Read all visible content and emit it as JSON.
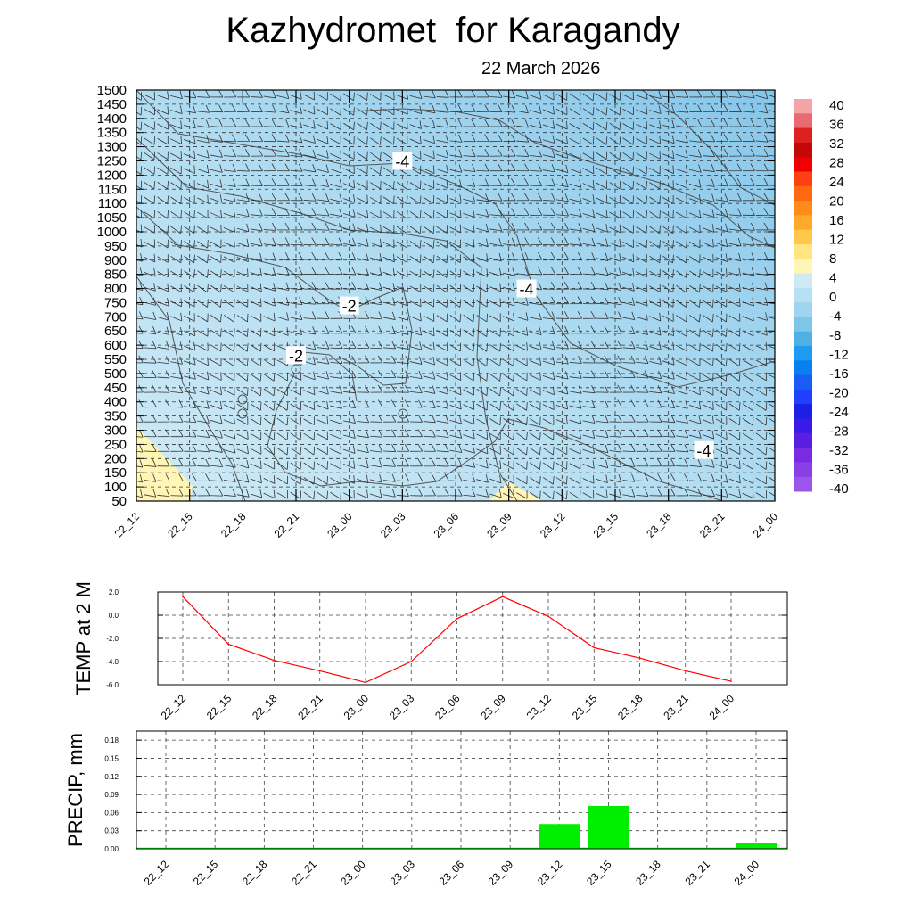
{
  "title": "Kazhydromet  for Karagandy",
  "subtitle": "22 March 2026",
  "colors": {
    "background_field": "#a9d9ef",
    "warm_patch": "#fff5b5",
    "contour": "#555555",
    "temp_line": "#ff0000",
    "precip_bar": "#00ee00",
    "grid": "#444444"
  },
  "chart_data": [
    {
      "type": "heatmap",
      "name": "vertical-cross-section",
      "x_tick_labels": [
        "22_12",
        "22_15",
        "22_18",
        "22_21",
        "23_00",
        "23_03",
        "23_06",
        "23_09",
        "23_12",
        "23_15",
        "23_18",
        "23_21",
        "24_00"
      ],
      "y_tick_labels": [
        "50",
        "100",
        "150",
        "200",
        "250",
        "300",
        "350",
        "400",
        "450",
        "500",
        "550",
        "600",
        "650",
        "700",
        "750",
        "800",
        "850",
        "900",
        "950",
        "1000",
        "1050",
        "1100",
        "1150",
        "1200",
        "1250",
        "1300",
        "1350",
        "1400",
        "1450",
        "1500"
      ],
      "ylim": [
        50,
        1500
      ],
      "contour_labels": [
        {
          "text": "-4",
          "x": 23.03,
          "y": 1250
        },
        {
          "text": "-2",
          "x": 23.0,
          "y": 740
        },
        {
          "text": "-4",
          "x": 23.1,
          "y": 800
        },
        {
          "text": "-2",
          "x": 22.21,
          "y": 565
        },
        {
          "text": "-4",
          "x": 23.2,
          "y": 230
        }
      ],
      "colorbar": {
        "labels": [
          "40",
          "36",
          "32",
          "28",
          "24",
          "20",
          "16",
          "12",
          "8",
          "4",
          "0",
          "-4",
          "-8",
          "-12",
          "-16",
          "-20",
          "-24",
          "-28",
          "-32",
          "-36",
          "-40"
        ],
        "colors": [
          "#f4a3a8",
          "#ea6a72",
          "#dd2020",
          "#c40808",
          "#f00000",
          "#ff4010",
          "#ff6a10",
          "#ff8c1a",
          "#ffa82a",
          "#ffc84a",
          "#ffe680",
          "#fff5b5",
          "#cfeaf7",
          "#b8e0f3",
          "#9fd5ee",
          "#7cc6ea",
          "#4fb0e5",
          "#1e9cf0",
          "#0a7ff0",
          "#1a5df5",
          "#2040ff",
          "#1a20e6",
          "#3a1ae6",
          "#5a1ee0",
          "#7a2ae0",
          "#8a3ee6",
          "#9a55ea"
        ]
      }
    },
    {
      "type": "line",
      "name": "temp-2m",
      "ylabel": "TEMP at 2 M",
      "categories": [
        "22_12",
        "22_15",
        "22_18",
        "22_21",
        "23_00",
        "23_03",
        "23_06",
        "23_09",
        "23_12",
        "23_15",
        "23_18",
        "23_21",
        "24_00"
      ],
      "values": [
        1.6,
        -2.5,
        -3.9,
        -4.8,
        -5.8,
        -4.0,
        -0.3,
        1.6,
        -0.1,
        -2.8,
        -3.7,
        -4.8,
        -5.7
      ],
      "y_tick_labels": [
        "2.0",
        "0.0",
        "-2.0",
        "-4.0",
        "-6.0"
      ],
      "ylim": [
        -6,
        2
      ]
    },
    {
      "type": "bar",
      "name": "precipitation",
      "ylabel": "PRECIP, mm",
      "categories": [
        "22_12",
        "22_15",
        "22_18",
        "22_21",
        "23_00",
        "23_03",
        "23_06",
        "23_09",
        "23_12",
        "23_15",
        "23_18",
        "23_21",
        "24_00"
      ],
      "values": [
        0,
        0,
        0,
        0,
        0,
        0,
        0,
        0,
        0.041,
        0.071,
        0,
        0,
        0.01
      ],
      "y_tick_labels": [
        "0.18",
        "0.15",
        "0.12",
        "0.09",
        "0.06",
        "0.03",
        "0.00"
      ],
      "ylim": [
        0,
        0.195
      ]
    }
  ]
}
